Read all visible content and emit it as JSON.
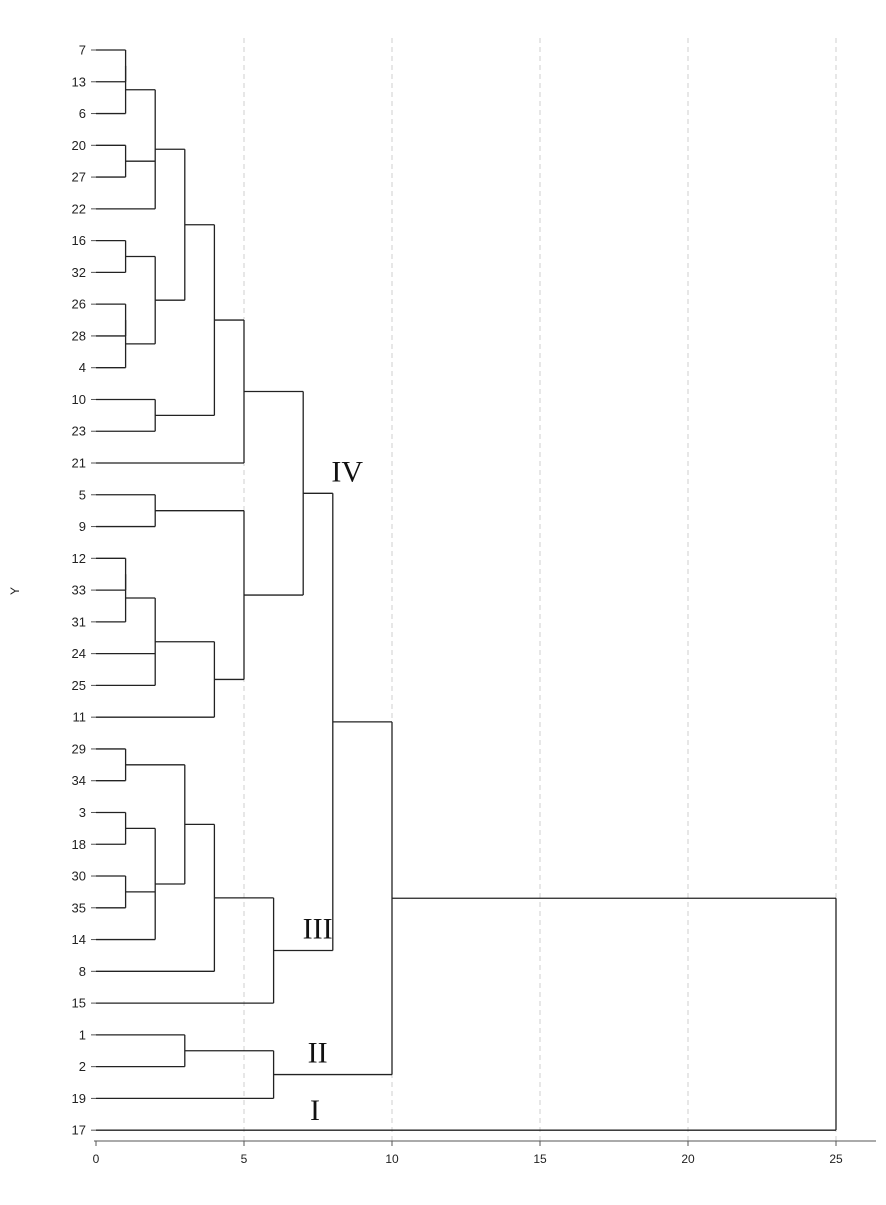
{
  "chart_data": {
    "type": "dendrogram",
    "ylabel": "Y",
    "xlim": [
      0,
      25
    ],
    "x_ticks": [
      "0",
      "5",
      "10",
      "15",
      "20",
      "25"
    ],
    "grid": true,
    "leaves": [
      "7",
      "13",
      "6",
      "20",
      "27",
      "22",
      "16",
      "32",
      "26",
      "28",
      "4",
      "10",
      "23",
      "21",
      "5",
      "9",
      "12",
      "33",
      "31",
      "24",
      "25",
      "11",
      "29",
      "34",
      "3",
      "18",
      "30",
      "35",
      "14",
      "8",
      "15",
      "1",
      "2",
      "19",
      "17"
    ],
    "merges": [
      {
        "id": "a1",
        "children": [
          "7",
          "13"
        ],
        "height": 1
      },
      {
        "id": "a2",
        "children": [
          "a1",
          "6"
        ],
        "height": 1
      },
      {
        "id": "a3",
        "children": [
          "20",
          "27"
        ],
        "height": 1
      },
      {
        "id": "a4",
        "children": [
          "a2",
          "a3",
          "22"
        ],
        "height": 2
      },
      {
        "id": "b1",
        "children": [
          "16",
          "32"
        ],
        "height": 1
      },
      {
        "id": "b2",
        "children": [
          "26",
          "28"
        ],
        "height": 1
      },
      {
        "id": "b3",
        "children": [
          "b2",
          "4"
        ],
        "height": 1
      },
      {
        "id": "b4",
        "children": [
          "b1",
          "b3"
        ],
        "height": 2
      },
      {
        "id": "c1",
        "children": [
          "a4",
          "b4"
        ],
        "height": 3
      },
      {
        "id": "d1",
        "children": [
          "10",
          "23"
        ],
        "height": 2
      },
      {
        "id": "e1",
        "children": [
          "c1",
          "d1"
        ],
        "height": 4
      },
      {
        "id": "e2",
        "children": [
          "e1",
          "21"
        ],
        "height": 5
      },
      {
        "id": "f1",
        "children": [
          "5",
          "9"
        ],
        "height": 2
      },
      {
        "id": "g1",
        "children": [
          "12",
          "33"
        ],
        "height": 1
      },
      {
        "id": "g2",
        "children": [
          "g1",
          "31"
        ],
        "height": 1
      },
      {
        "id": "g3",
        "children": [
          "g2",
          "24",
          "25"
        ],
        "height": 2
      },
      {
        "id": "g4",
        "children": [
          "g3",
          "11"
        ],
        "height": 4
      },
      {
        "id": "g5",
        "children": [
          "f1",
          "g4"
        ],
        "height": 5
      },
      {
        "id": "IV",
        "children": [
          "e2",
          "g5"
        ],
        "height": 7
      },
      {
        "id": "h1",
        "children": [
          "29",
          "34"
        ],
        "height": 1
      },
      {
        "id": "h2",
        "children": [
          "3",
          "18"
        ],
        "height": 1
      },
      {
        "id": "h3",
        "children": [
          "30",
          "35"
        ],
        "height": 1
      },
      {
        "id": "h4",
        "children": [
          "h2",
          "h3",
          "14"
        ],
        "height": 2
      },
      {
        "id": "h5",
        "children": [
          "h1",
          "h4"
        ],
        "height": 3
      },
      {
        "id": "h6",
        "children": [
          "h5",
          "8"
        ],
        "height": 4
      },
      {
        "id": "III",
        "children": [
          "h6",
          "15"
        ],
        "height": 6
      },
      {
        "id": "k1",
        "children": [
          "IV",
          "III"
        ],
        "height": 8
      },
      {
        "id": "m1",
        "children": [
          "1",
          "2"
        ],
        "height": 3
      },
      {
        "id": "II",
        "children": [
          "m1",
          "19"
        ],
        "height": 6
      },
      {
        "id": "n1",
        "children": [
          "k1",
          "II"
        ],
        "height": 10
      },
      {
        "id": "root",
        "children": [
          "n1",
          "17"
        ],
        "height": 25
      }
    ],
    "cluster_labels": [
      {
        "text": "IV",
        "cluster": "IV"
      },
      {
        "text": "III",
        "cluster": "III"
      },
      {
        "text": "II",
        "cluster": "II"
      },
      {
        "text": "I",
        "cluster": "17"
      }
    ],
    "colors": {
      "line": "#222222",
      "grid": "#cfcfcf",
      "axis": "#555555"
    }
  }
}
